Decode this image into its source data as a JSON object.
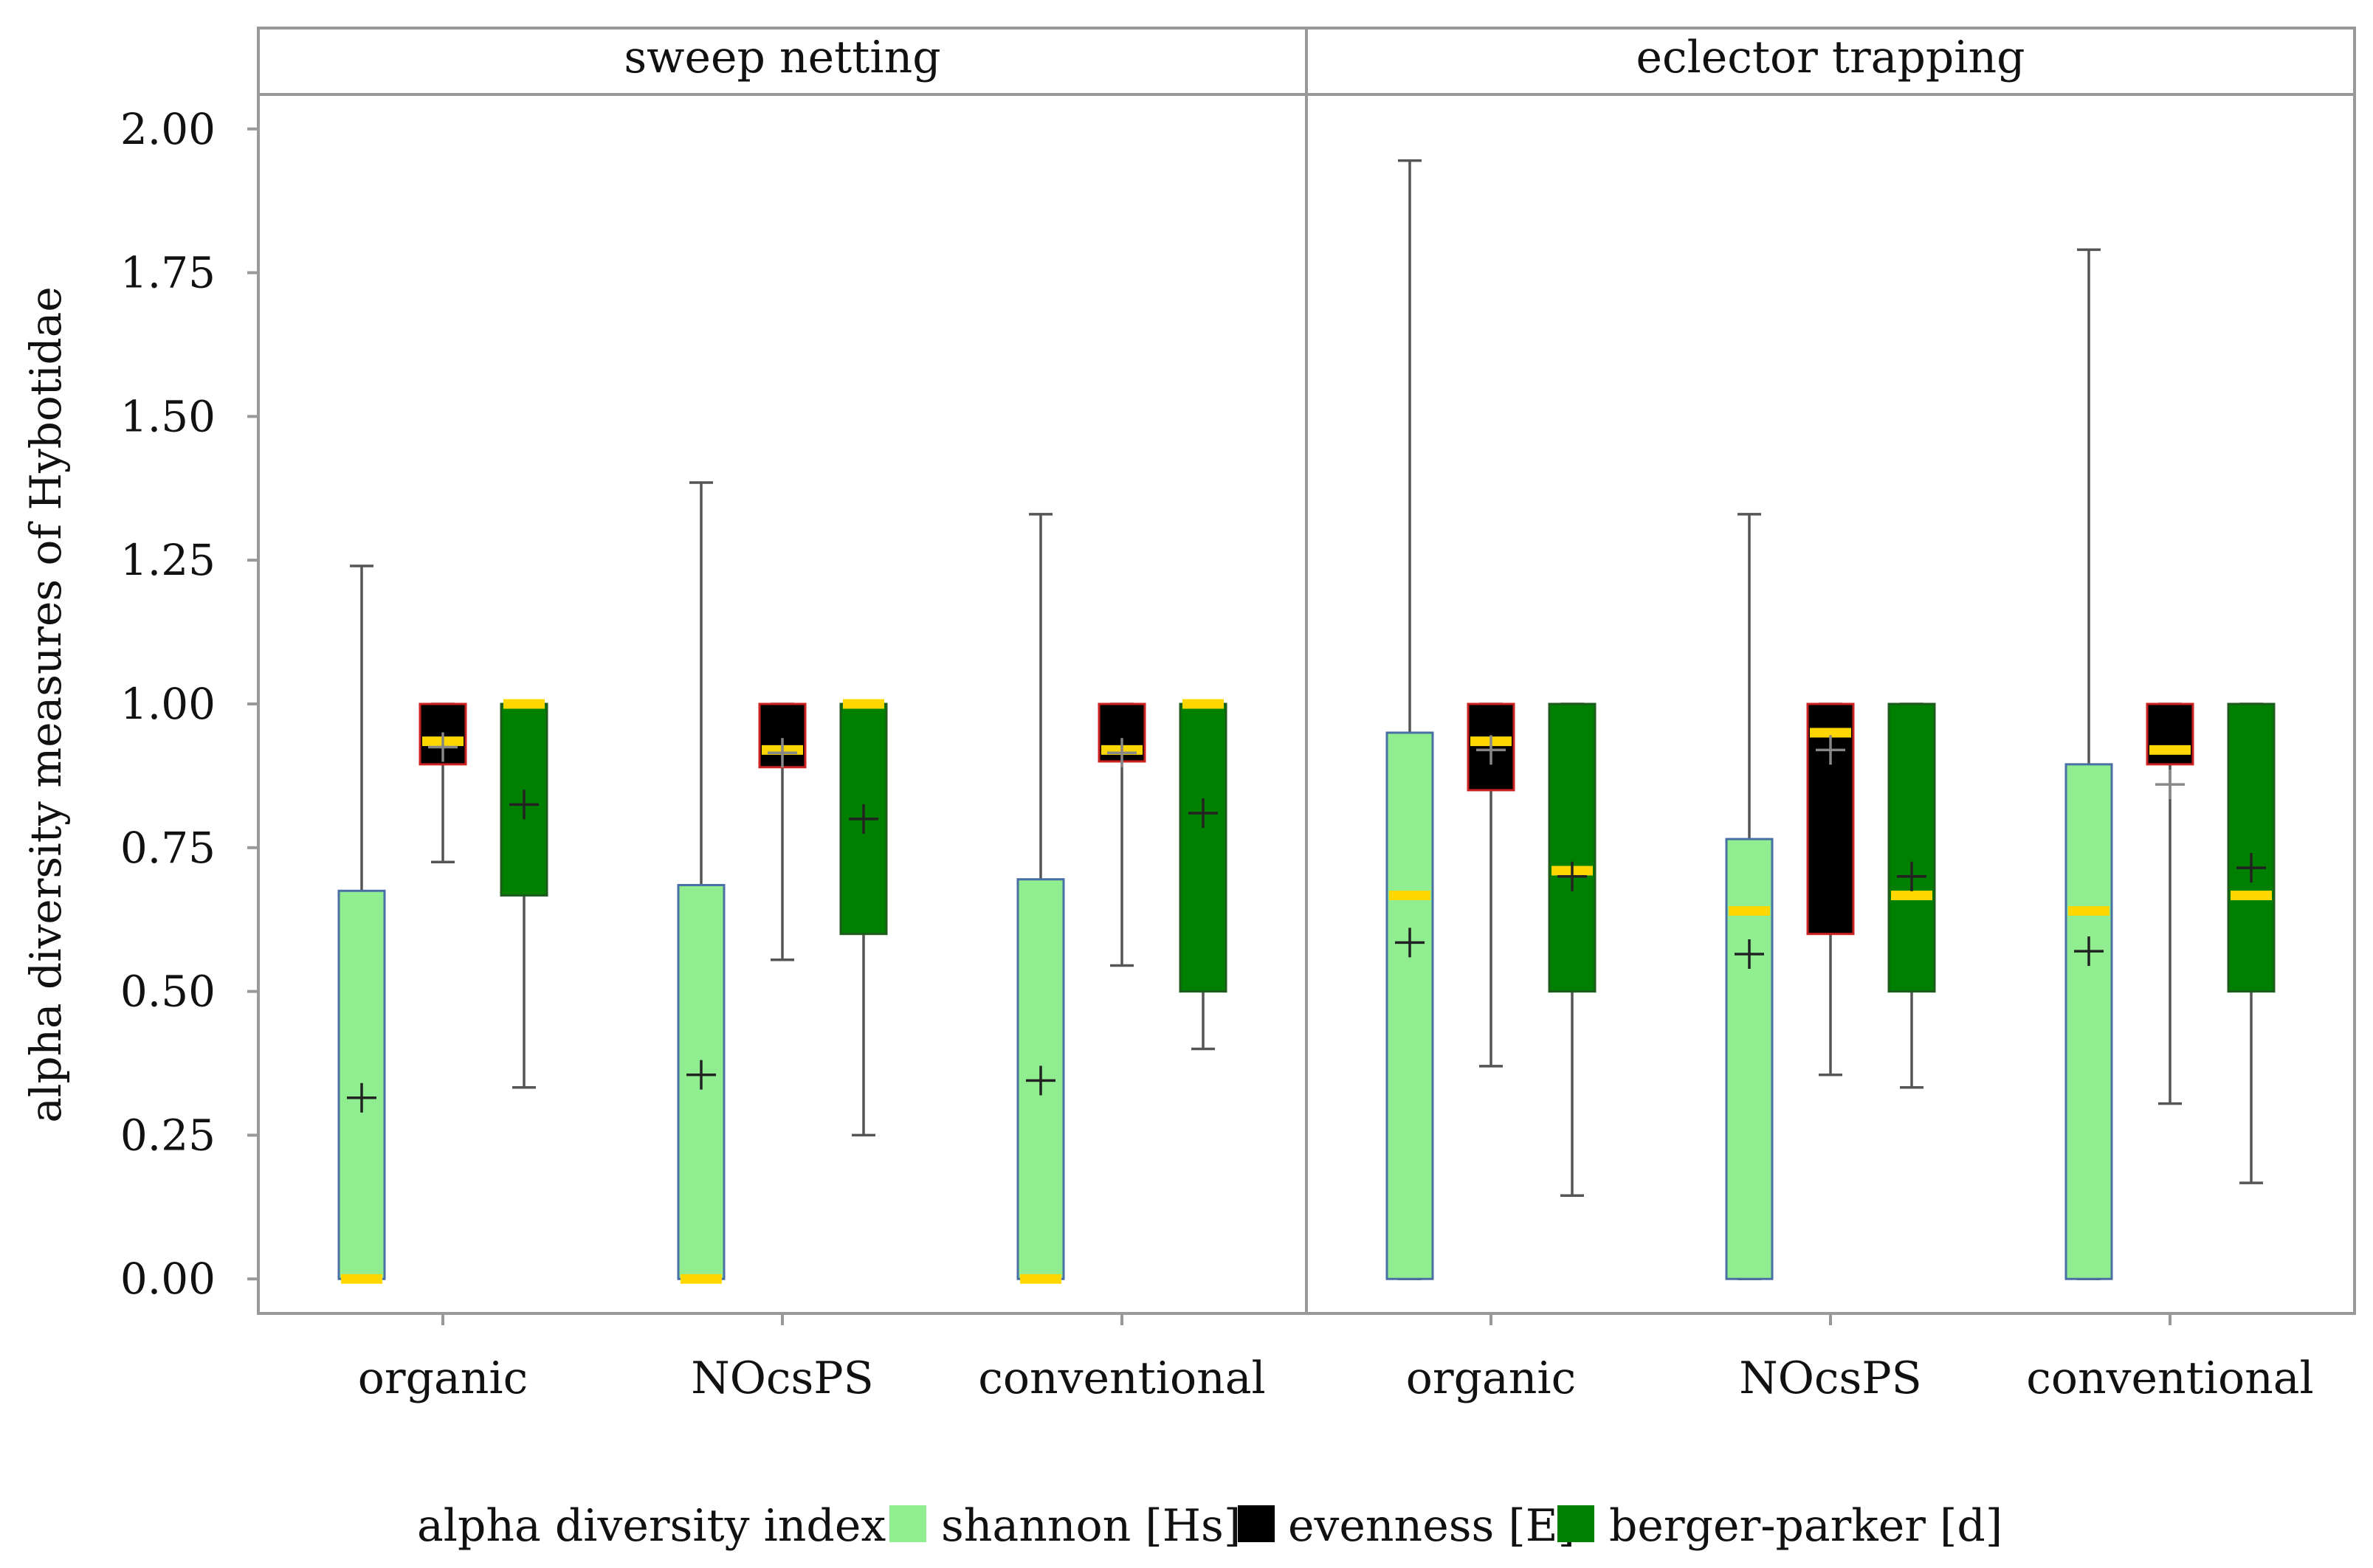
{
  "chart_data": {
    "type": "boxplot",
    "ylabel": "alpha diversity measures of Hybotidae",
    "xlabel": "",
    "ylim": [
      -0.06,
      2.06
    ],
    "yticks": [
      0.0,
      0.25,
      0.5,
      0.75,
      1.0,
      1.25,
      1.5,
      1.75,
      2.0
    ],
    "ytick_labels": [
      "0.00",
      "0.25",
      "0.50",
      "0.75",
      "1.00",
      "1.25",
      "1.50",
      "1.75",
      "2.00"
    ],
    "categories": [
      "organic",
      "NOcsPS",
      "conventional"
    ],
    "legend": {
      "title": "alpha diversity index",
      "entries": [
        {
          "key": "shannon",
          "label": "shannon [Hs]"
        },
        {
          "key": "evenness",
          "label": "evenness [E]"
        },
        {
          "key": "berger",
          "label": "berger-parker [d]"
        }
      ]
    },
    "styles": {
      "shannon": {
        "fill": "#90EE90",
        "stroke": "#4a6fa5",
        "mean_color": "#222222"
      },
      "evenness": {
        "fill": "#000000",
        "stroke": "#cc2222",
        "mean_color": "#888888"
      },
      "berger": {
        "fill": "#008000",
        "stroke": "#1d5c1d",
        "mean_color": "#222222"
      },
      "median_color": "#FFD700",
      "whisker_color": "#555555"
    },
    "panels": [
      {
        "title": "sweep netting",
        "groups": [
          {
            "category": "organic",
            "boxes": [
              {
                "index": "shannon",
                "min": 0.0,
                "q1": 0.0,
                "median": 0.0,
                "q3": 0.675,
                "max": 1.24,
                "mean": 0.315
              },
              {
                "index": "evenness",
                "min": 0.725,
                "q1": 0.895,
                "median": 0.935,
                "q3": 1.0,
                "max": 1.0,
                "mean": 0.925
              },
              {
                "index": "berger",
                "min": 0.333,
                "q1": 0.667,
                "median": 1.0,
                "q3": 1.0,
                "max": 1.0,
                "mean": 0.825
              }
            ]
          },
          {
            "category": "NOcsPS",
            "boxes": [
              {
                "index": "shannon",
                "min": 0.0,
                "q1": 0.0,
                "median": 0.0,
                "q3": 0.685,
                "max": 1.385,
                "mean": 0.355
              },
              {
                "index": "evenness",
                "min": 0.555,
                "q1": 0.89,
                "median": 0.92,
                "q3": 1.0,
                "max": 1.0,
                "mean": 0.915
              },
              {
                "index": "berger",
                "min": 0.25,
                "q1": 0.6,
                "median": 1.0,
                "q3": 1.0,
                "max": 1.0,
                "mean": 0.8
              }
            ]
          },
          {
            "category": "conventional",
            "boxes": [
              {
                "index": "shannon",
                "min": 0.0,
                "q1": 0.0,
                "median": 0.0,
                "q3": 0.695,
                "max": 1.33,
                "mean": 0.345
              },
              {
                "index": "evenness",
                "min": 0.545,
                "q1": 0.9,
                "median": 0.92,
                "q3": 1.0,
                "max": 1.0,
                "mean": 0.915
              },
              {
                "index": "berger",
                "min": 0.4,
                "q1": 0.5,
                "median": 1.0,
                "q3": 1.0,
                "max": 1.0,
                "mean": 0.81
              }
            ]
          }
        ]
      },
      {
        "title": "eclector trapping",
        "groups": [
          {
            "category": "organic",
            "boxes": [
              {
                "index": "shannon",
                "min": 0.0,
                "q1": 0.0,
                "median": 0.667,
                "q3": 0.95,
                "max": 1.945,
                "mean": 0.585
              },
              {
                "index": "evenness",
                "min": 0.37,
                "q1": 0.85,
                "median": 0.935,
                "q3": 1.0,
                "max": 1.0,
                "mean": 0.92
              },
              {
                "index": "berger",
                "min": 0.145,
                "q1": 0.5,
                "median": 0.71,
                "q3": 1.0,
                "max": 1.0,
                "mean": 0.7
              }
            ]
          },
          {
            "category": "NOcsPS",
            "boxes": [
              {
                "index": "shannon",
                "min": 0.0,
                "q1": 0.0,
                "median": 0.64,
                "q3": 0.765,
                "max": 1.33,
                "mean": 0.565
              },
              {
                "index": "evenness",
                "min": 0.355,
                "q1": 0.6,
                "median": 0.95,
                "q3": 1.0,
                "max": 1.0,
                "mean": 0.92
              },
              {
                "index": "berger",
                "min": 0.333,
                "q1": 0.5,
                "median": 0.667,
                "q3": 1.0,
                "max": 1.0,
                "mean": 0.7
              }
            ]
          },
          {
            "category": "conventional",
            "boxes": [
              {
                "index": "shannon",
                "min": 0.0,
                "q1": 0.0,
                "median": 0.64,
                "q3": 0.895,
                "max": 1.79,
                "mean": 0.57
              },
              {
                "index": "evenness",
                "min": 0.305,
                "q1": 0.895,
                "median": 0.92,
                "q3": 1.0,
                "max": 1.0,
                "mean": 0.86
              },
              {
                "index": "berger",
                "min": 0.167,
                "q1": 0.5,
                "median": 0.667,
                "q3": 1.0,
                "max": 1.0,
                "mean": 0.715
              }
            ]
          }
        ]
      }
    ]
  }
}
